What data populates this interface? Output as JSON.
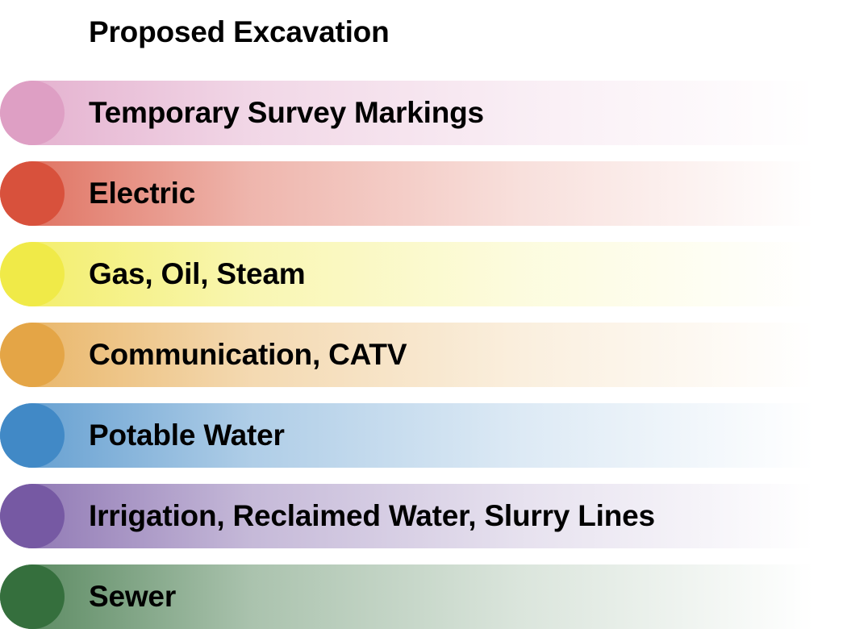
{
  "legend": {
    "items": [
      {
        "label": "Proposed Excavation",
        "color": "#ffffff",
        "swatch": false
      },
      {
        "label": "Temporary Survey Markings",
        "color": "#de9fc4",
        "swatch": true
      },
      {
        "label": "Electric",
        "color": "#d8513c",
        "swatch": true
      },
      {
        "label": "Gas, Oil, Steam",
        "color": "#f0ea48",
        "swatch": true
      },
      {
        "label": "Communication, CATV",
        "color": "#e4a546",
        "swatch": true
      },
      {
        "label": "Potable Water",
        "color": "#4189c6",
        "swatch": true
      },
      {
        "label": "Irrigation, Reclaimed Water, Slurry Lines",
        "color": "#7659a3",
        "swatch": true
      },
      {
        "label": "Sewer",
        "color": "#356f3d",
        "swatch": true
      }
    ]
  }
}
